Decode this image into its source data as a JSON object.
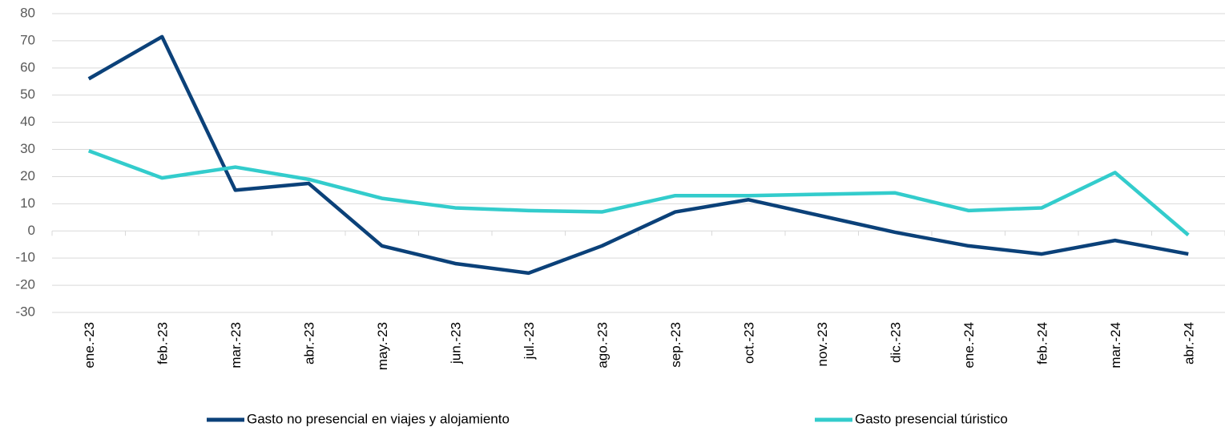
{
  "chart_data": {
    "type": "line",
    "categories": [
      "ene.-23",
      "feb.-23",
      "mar.-23",
      "abr.-23",
      "may.-23",
      "jun.-23",
      "jul.-23",
      "ago.-23",
      "sep.-23",
      "oct.-23",
      "nov.-23",
      "dic.-23",
      "ene.-24",
      "feb.-24",
      "mar.-24",
      "abr.-24"
    ],
    "series": [
      {
        "name": "Gasto no presencial en viajes y alojamiento",
        "color": "#0b4179",
        "values": [
          56,
          71.5,
          15,
          17.5,
          -5.5,
          -12,
          -15.5,
          -5.5,
          7,
          11.5,
          5.5,
          -0.5,
          -5.5,
          -8.5,
          -3.5,
          -8.5
        ]
      },
      {
        "name": "Gasto presencial túristico",
        "color": "#33cccc",
        "values": [
          29.5,
          19.5,
          23.5,
          19,
          12,
          8.5,
          7.5,
          7,
          13,
          13,
          13.5,
          14,
          7.5,
          8.5,
          21.5,
          -1.5
        ]
      }
    ],
    "ylim": [
      -30,
      80
    ],
    "yticks": [
      -30,
      -20,
      -10,
      0,
      10,
      20,
      30,
      40,
      50,
      60,
      70,
      80
    ],
    "grid": true
  }
}
